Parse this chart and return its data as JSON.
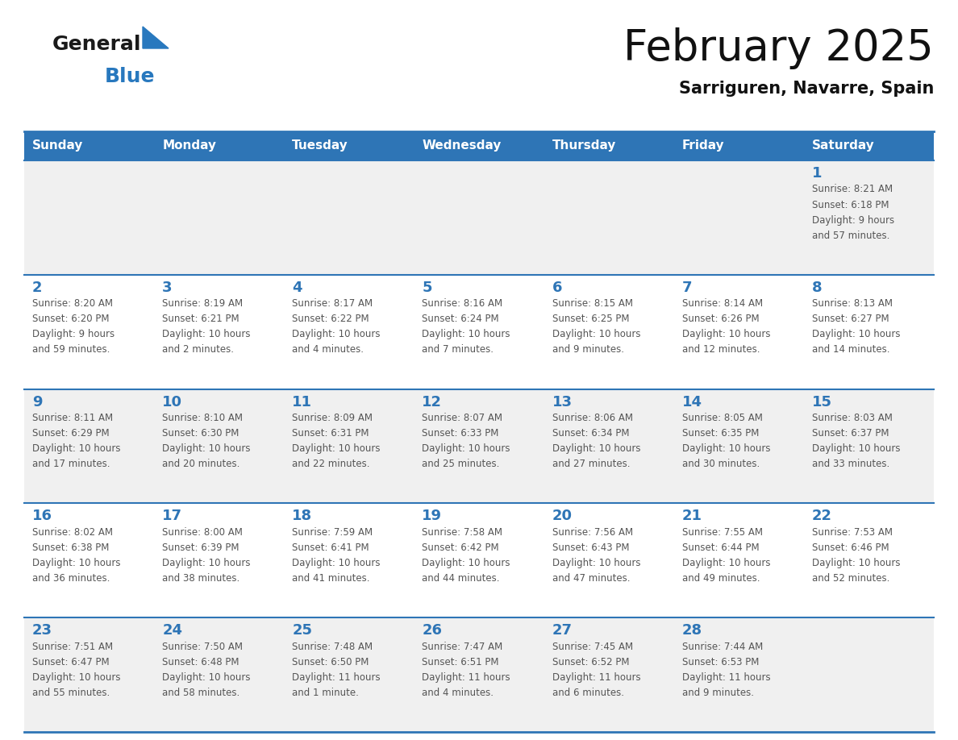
{
  "title": "February 2025",
  "subtitle": "Sarriguren, Navarre, Spain",
  "header_bg": "#2E75B6",
  "header_text_color": "#FFFFFF",
  "days_of_week": [
    "Sunday",
    "Monday",
    "Tuesday",
    "Wednesday",
    "Thursday",
    "Friday",
    "Saturday"
  ],
  "cell_bg_light": "#F0F0F0",
  "cell_bg_white": "#FFFFFF",
  "separator_color": "#2E75B6",
  "day_number_color": "#2E75B6",
  "info_text_color": "#555555",
  "background_color": "#FFFFFF",
  "logo_general_color": "#1a1a1a",
  "logo_blue_color": "#2878BE",
  "logo_triangle_color": "#2878BE",
  "calendar_data": [
    [
      null,
      null,
      null,
      null,
      null,
      null,
      {
        "day": 1,
        "sunrise": "8:21 AM",
        "sunset": "6:18 PM",
        "daylight": "9 hours",
        "daylight2": "and 57 minutes."
      }
    ],
    [
      {
        "day": 2,
        "sunrise": "8:20 AM",
        "sunset": "6:20 PM",
        "daylight": "9 hours",
        "daylight2": "and 59 minutes."
      },
      {
        "day": 3,
        "sunrise": "8:19 AM",
        "sunset": "6:21 PM",
        "daylight": "10 hours",
        "daylight2": "and 2 minutes."
      },
      {
        "day": 4,
        "sunrise": "8:17 AM",
        "sunset": "6:22 PM",
        "daylight": "10 hours",
        "daylight2": "and 4 minutes."
      },
      {
        "day": 5,
        "sunrise": "8:16 AM",
        "sunset": "6:24 PM",
        "daylight": "10 hours",
        "daylight2": "and 7 minutes."
      },
      {
        "day": 6,
        "sunrise": "8:15 AM",
        "sunset": "6:25 PM",
        "daylight": "10 hours",
        "daylight2": "and 9 minutes."
      },
      {
        "day": 7,
        "sunrise": "8:14 AM",
        "sunset": "6:26 PM",
        "daylight": "10 hours",
        "daylight2": "and 12 minutes."
      },
      {
        "day": 8,
        "sunrise": "8:13 AM",
        "sunset": "6:27 PM",
        "daylight": "10 hours",
        "daylight2": "and 14 minutes."
      }
    ],
    [
      {
        "day": 9,
        "sunrise": "8:11 AM",
        "sunset": "6:29 PM",
        "daylight": "10 hours",
        "daylight2": "and 17 minutes."
      },
      {
        "day": 10,
        "sunrise": "8:10 AM",
        "sunset": "6:30 PM",
        "daylight": "10 hours",
        "daylight2": "and 20 minutes."
      },
      {
        "day": 11,
        "sunrise": "8:09 AM",
        "sunset": "6:31 PM",
        "daylight": "10 hours",
        "daylight2": "and 22 minutes."
      },
      {
        "day": 12,
        "sunrise": "8:07 AM",
        "sunset": "6:33 PM",
        "daylight": "10 hours",
        "daylight2": "and 25 minutes."
      },
      {
        "day": 13,
        "sunrise": "8:06 AM",
        "sunset": "6:34 PM",
        "daylight": "10 hours",
        "daylight2": "and 27 minutes."
      },
      {
        "day": 14,
        "sunrise": "8:05 AM",
        "sunset": "6:35 PM",
        "daylight": "10 hours",
        "daylight2": "and 30 minutes."
      },
      {
        "day": 15,
        "sunrise": "8:03 AM",
        "sunset": "6:37 PM",
        "daylight": "10 hours",
        "daylight2": "and 33 minutes."
      }
    ],
    [
      {
        "day": 16,
        "sunrise": "8:02 AM",
        "sunset": "6:38 PM",
        "daylight": "10 hours",
        "daylight2": "and 36 minutes."
      },
      {
        "day": 17,
        "sunrise": "8:00 AM",
        "sunset": "6:39 PM",
        "daylight": "10 hours",
        "daylight2": "and 38 minutes."
      },
      {
        "day": 18,
        "sunrise": "7:59 AM",
        "sunset": "6:41 PM",
        "daylight": "10 hours",
        "daylight2": "and 41 minutes."
      },
      {
        "day": 19,
        "sunrise": "7:58 AM",
        "sunset": "6:42 PM",
        "daylight": "10 hours",
        "daylight2": "and 44 minutes."
      },
      {
        "day": 20,
        "sunrise": "7:56 AM",
        "sunset": "6:43 PM",
        "daylight": "10 hours",
        "daylight2": "and 47 minutes."
      },
      {
        "day": 21,
        "sunrise": "7:55 AM",
        "sunset": "6:44 PM",
        "daylight": "10 hours",
        "daylight2": "and 49 minutes."
      },
      {
        "day": 22,
        "sunrise": "7:53 AM",
        "sunset": "6:46 PM",
        "daylight": "10 hours",
        "daylight2": "and 52 minutes."
      }
    ],
    [
      {
        "day": 23,
        "sunrise": "7:51 AM",
        "sunset": "6:47 PM",
        "daylight": "10 hours",
        "daylight2": "and 55 minutes."
      },
      {
        "day": 24,
        "sunrise": "7:50 AM",
        "sunset": "6:48 PM",
        "daylight": "10 hours",
        "daylight2": "and 58 minutes."
      },
      {
        "day": 25,
        "sunrise": "7:48 AM",
        "sunset": "6:50 PM",
        "daylight": "11 hours",
        "daylight2": "and 1 minute."
      },
      {
        "day": 26,
        "sunrise": "7:47 AM",
        "sunset": "6:51 PM",
        "daylight": "11 hours",
        "daylight2": "and 4 minutes."
      },
      {
        "day": 27,
        "sunrise": "7:45 AM",
        "sunset": "6:52 PM",
        "daylight": "11 hours",
        "daylight2": "and 6 minutes."
      },
      {
        "day": 28,
        "sunrise": "7:44 AM",
        "sunset": "6:53 PM",
        "daylight": "11 hours",
        "daylight2": "and 9 minutes."
      },
      null
    ]
  ]
}
